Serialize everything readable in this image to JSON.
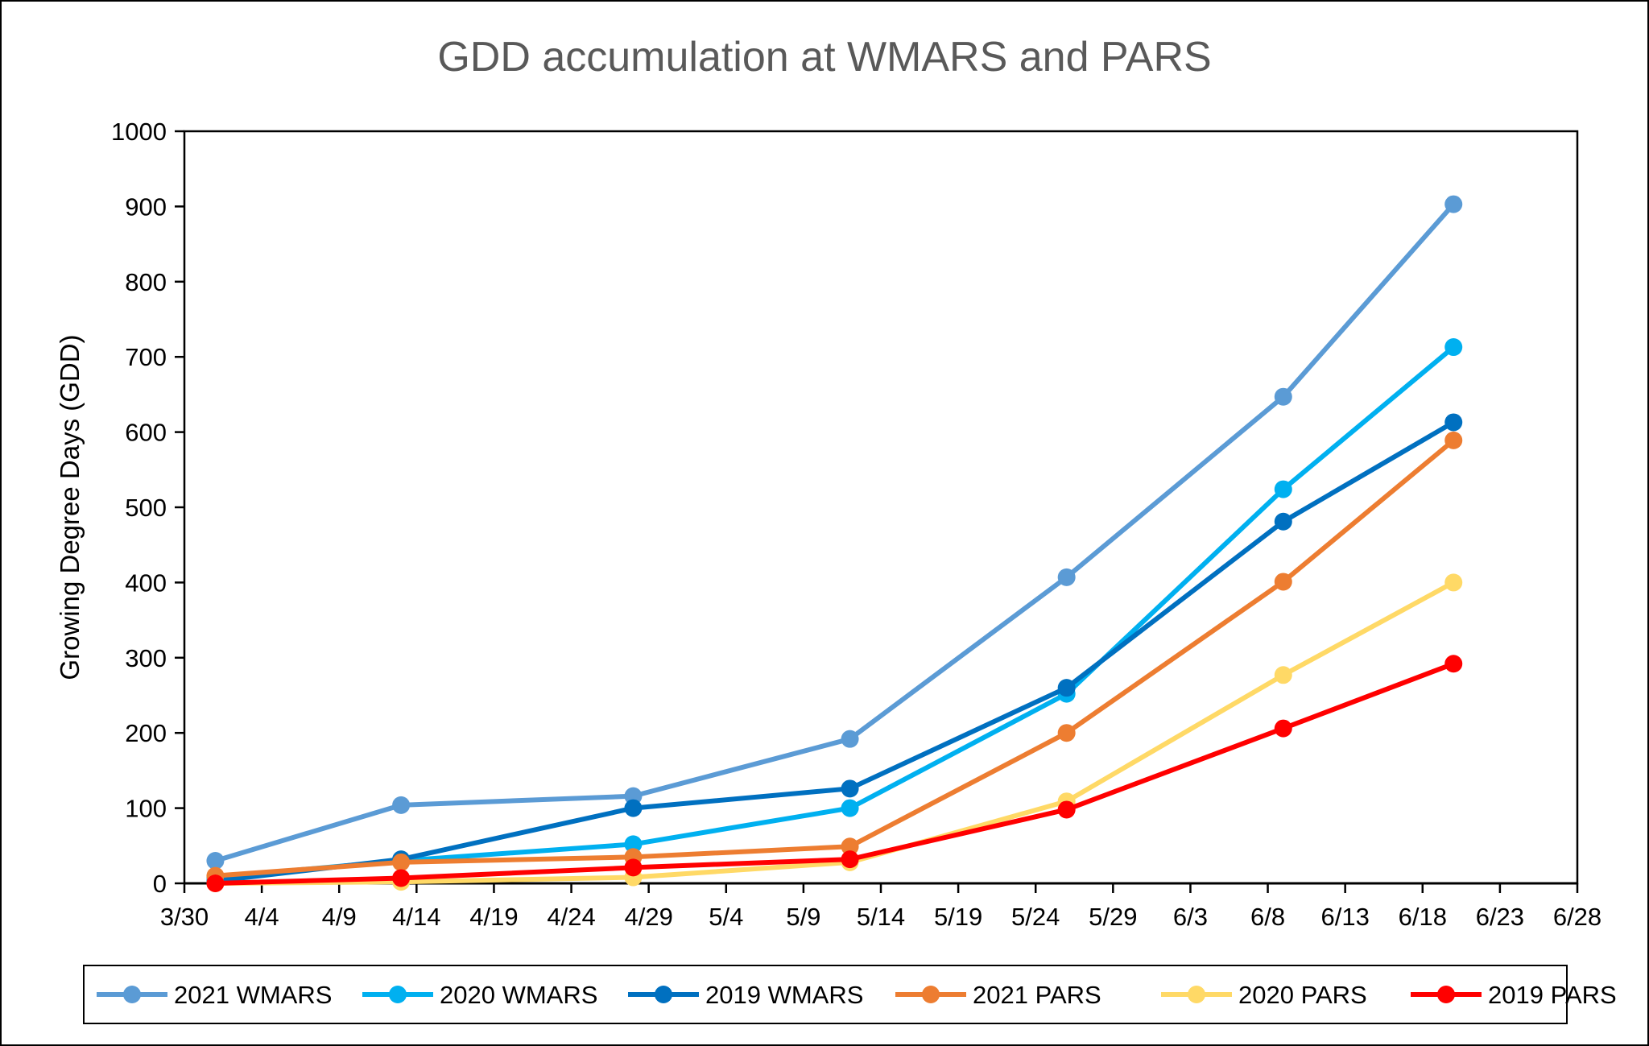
{
  "chart_data": {
    "type": "line",
    "title": "GDD accumulation at WMARS and PARS",
    "xlabel": "",
    "ylabel": "Growing Degree Days (GDD)",
    "ylim": [
      0,
      1000
    ],
    "yticks": [
      "0",
      "100",
      "200",
      "300",
      "400",
      "500",
      "600",
      "700",
      "800",
      "900",
      "1000"
    ],
    "xlim": [
      "3/30",
      "6/28"
    ],
    "xticks": [
      "3/30",
      "4/4",
      "4/9",
      "4/14",
      "4/19",
      "4/24",
      "4/29",
      "5/4",
      "5/9",
      "5/14",
      "5/19",
      "5/24",
      "5/29",
      "6/3",
      "6/8",
      "6/13",
      "6/18",
      "6/23",
      "6/28"
    ],
    "grid": false,
    "legend_position": "bottom",
    "x": [
      "4/1",
      "4/13",
      "4/28",
      "5/12",
      "5/26",
      "6/9",
      "6/20"
    ],
    "series": [
      {
        "name": "2021 WMARS",
        "color": "#5B9BD5",
        "values": [
          30,
          104,
          116,
          192,
          407,
          647,
          903
        ]
      },
      {
        "name": "2020 WMARS",
        "color": "#00B0F0",
        "values": [
          8,
          30,
          52,
          100,
          252,
          524,
          713
        ]
      },
      {
        "name": "2019 WMARS",
        "color": "#0070C0",
        "values": [
          3,
          32,
          100,
          126,
          260,
          481,
          613
        ]
      },
      {
        "name": "2021 PARS",
        "color": "#ED7D31",
        "values": [
          10,
          28,
          35,
          49,
          200,
          401,
          589
        ]
      },
      {
        "name": "2020 PARS",
        "color": "#FFD966",
        "values": [
          0,
          2,
          8,
          28,
          109,
          277,
          400
        ]
      },
      {
        "name": "2019 PARS",
        "color": "#FF0000",
        "values": [
          0,
          7,
          21,
          32,
          98,
          206,
          292
        ]
      }
    ]
  }
}
